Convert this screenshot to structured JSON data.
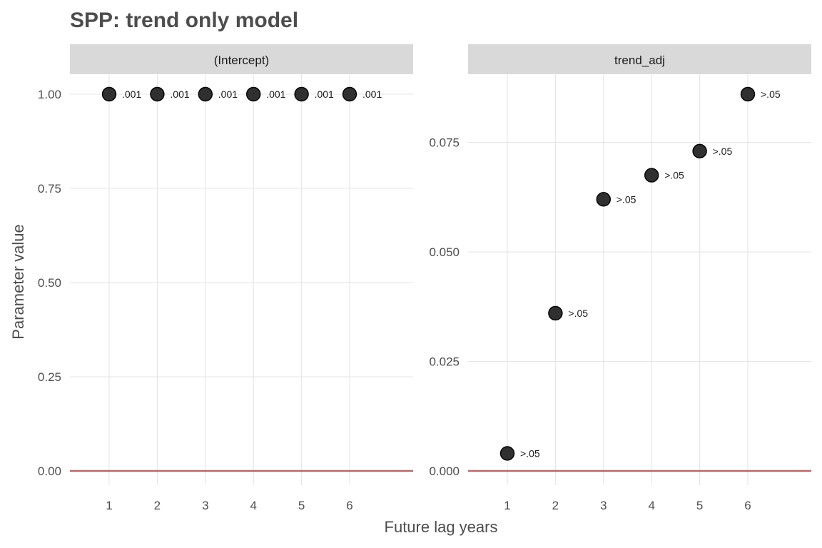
{
  "chart_data": {
    "type": "scatter",
    "title": "SPP: trend only model",
    "xlabel": "Future lag years",
    "ylabel": "Parameter value",
    "grid": true,
    "reference_line_y": 0,
    "colors": {
      "point": "#1a1a1a",
      "reference_line": "#b56b6b",
      "strip": "#d9d9d9",
      "grid": "#e5e5e5"
    },
    "x_ticks": [
      "1",
      "2",
      "3",
      "4",
      "5",
      "6"
    ],
    "panels": [
      {
        "strip": "(Intercept)",
        "ylim": [
          0,
          1
        ],
        "y_ticks": [
          "0.00",
          "0.25",
          "0.50",
          "0.75",
          "1.00"
        ],
        "y_tick_values": [
          0,
          0.25,
          0.5,
          0.75,
          1.0
        ],
        "points": [
          {
            "x": 1,
            "y": 1.0,
            "label": ".001"
          },
          {
            "x": 2,
            "y": 1.0,
            "label": ".001"
          },
          {
            "x": 3,
            "y": 1.0,
            "label": ".001"
          },
          {
            "x": 4,
            "y": 1.0,
            "label": ".001"
          },
          {
            "x": 5,
            "y": 1.0,
            "label": ".001"
          },
          {
            "x": 6,
            "y": 1.0,
            "label": ".001"
          }
        ]
      },
      {
        "strip": "trend_adj",
        "ylim": [
          0,
          0.086
        ],
        "y_ticks": [
          "0.000",
          "0.025",
          "0.050",
          "0.075"
        ],
        "y_tick_values": [
          0,
          0.025,
          0.05,
          0.075
        ],
        "points": [
          {
            "x": 1,
            "y": 0.004,
            "label": ">.05"
          },
          {
            "x": 2,
            "y": 0.036,
            "label": ">.05"
          },
          {
            "x": 3,
            "y": 0.062,
            "label": ">.05"
          },
          {
            "x": 4,
            "y": 0.0675,
            "label": ">.05"
          },
          {
            "x": 5,
            "y": 0.073,
            "label": ">.05"
          },
          {
            "x": 6,
            "y": 0.086,
            "label": ">.05"
          }
        ]
      }
    ]
  }
}
